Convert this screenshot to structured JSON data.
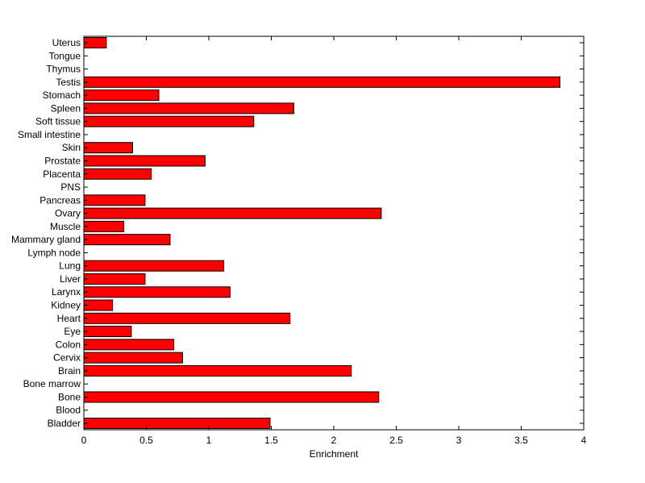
{
  "chart_data": {
    "type": "bar",
    "orientation": "horizontal",
    "title": "",
    "xlabel": "Enrichment",
    "ylabel": "",
    "xlim": [
      0,
      4
    ],
    "xticks": [
      "0",
      "0.5",
      "1",
      "1.5",
      "2",
      "2.5",
      "3",
      "3.5",
      "4"
    ],
    "grid": false,
    "bar_color": "#ff0000",
    "categories": [
      "Bladder",
      "Blood",
      "Bone",
      "Bone marrow",
      "Brain",
      "Cervix",
      "Colon",
      "Eye",
      "Heart",
      "Kidney",
      "Larynx",
      "Liver",
      "Lung",
      "Lymph node",
      "Mammary gland",
      "Muscle",
      "Ovary",
      "Pancreas",
      "PNS",
      "Placenta",
      "Prostate",
      "Skin",
      "Small intestine",
      "Soft tissue",
      "Spleen",
      "Stomach",
      "Testis",
      "Thymus",
      "Tongue",
      "Uterus"
    ],
    "values": [
      1.49,
      0,
      2.36,
      0,
      2.14,
      0.79,
      0.72,
      0.38,
      1.65,
      0.23,
      1.17,
      0.49,
      1.12,
      0,
      0.69,
      0.32,
      2.38,
      0.49,
      0,
      0.54,
      0.97,
      0.39,
      0,
      1.36,
      1.68,
      0.6,
      3.81,
      0,
      0,
      0.18
    ]
  }
}
